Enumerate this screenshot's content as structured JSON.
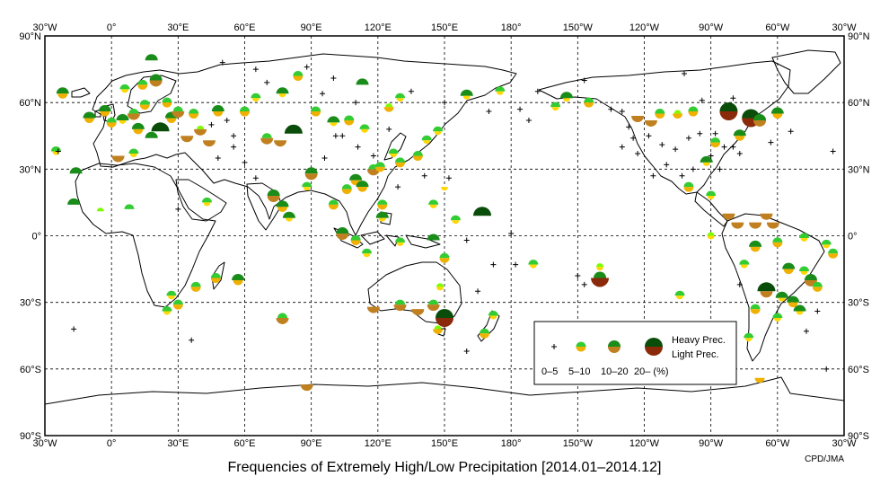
{
  "title": "Frequencies of Extremely High/Low Precipitation [2014.01–2014.12]",
  "credit": "CPD/JMA",
  "lon_labels": [
    "30°W",
    "0°",
    "30°E",
    "60°E",
    "90°E",
    "120°E",
    "150°E",
    "180°",
    "150°W",
    "120°W",
    "90°W",
    "60°W",
    "30°W"
  ],
  "lat_labels": [
    "90°N",
    "60°N",
    "30°N",
    "0°",
    "30°S",
    "60°S",
    "90°S"
  ],
  "legend": {
    "heavy_label": "Heavy Prec.",
    "light_label": "Light Prec.",
    "class_labels": [
      "0–5",
      "5–10",
      "10–20",
      "20– (%)"
    ]
  },
  "colors": {
    "heavy": [
      "#7cfc00",
      "#33cc33",
      "#1a8c1a",
      "#0a4d0a"
    ],
    "light": [
      "#ffd700",
      "#f0b000",
      "#c08020",
      "#8b2a0a"
    ]
  },
  "map_data": {
    "type": "station-symbol-map",
    "projection": "equirectangular, centered on 150°E (lon range 30°W–330°E)",
    "symbol_encoding": "upper half-disc = frequency of extremely heavy precipitation, lower half-disc = frequency of extremely light precipitation; '+' = 0–5%",
    "points": [
      {
        "lon": -10,
        "lat": 53,
        "h": 2,
        "l": 1
      },
      {
        "lon": -3,
        "lat": 56,
        "h": 2,
        "l": 1
      },
      {
        "lon": 0,
        "lat": 51,
        "h": 1,
        "l": 1
      },
      {
        "lon": 5,
        "lat": 52,
        "h": 2,
        "l": 0
      },
      {
        "lon": 10,
        "lat": 55,
        "h": 1,
        "l": 2
      },
      {
        "lon": 12,
        "lat": 48,
        "h": 2,
        "l": 1
      },
      {
        "lon": 15,
        "lat": 59,
        "h": 1,
        "l": 1
      },
      {
        "lon": 18,
        "lat": 44,
        "h": 2,
        "l": -1
      },
      {
        "lon": 22,
        "lat": 47,
        "h": 3,
        "l": -1
      },
      {
        "lon": 25,
        "lat": 60,
        "h": 1,
        "l": 1
      },
      {
        "lon": 27,
        "lat": 53,
        "h": 2,
        "l": 1
      },
      {
        "lon": 30,
        "lat": 56,
        "h": 1,
        "l": 2
      },
      {
        "lon": 34,
        "lat": 45,
        "h": -1,
        "l": 2
      },
      {
        "lon": 37,
        "lat": 55,
        "h": 1,
        "l": 1
      },
      {
        "lon": 40,
        "lat": 48,
        "h": 0,
        "l": 2
      },
      {
        "lon": 44,
        "lat": 43,
        "h": -1,
        "l": 2
      },
      {
        "lon": 48,
        "lat": 56,
        "h": 2,
        "l": 1
      },
      {
        "lon": 6,
        "lat": 66,
        "h": 1,
        "l": 0
      },
      {
        "lon": 14,
        "lat": 68,
        "h": 1,
        "l": 1
      },
      {
        "lon": 20,
        "lat": 70,
        "h": 2,
        "l": 2
      },
      {
        "lon": -22,
        "lat": 64,
        "h": 2,
        "l": 1
      },
      {
        "lon": 18,
        "lat": 79,
        "h": 2,
        "l": -1
      },
      {
        "lon": -25,
        "lat": 38,
        "h": 1,
        "l": 0
      },
      {
        "lon": -16,
        "lat": 28,
        "h": 2,
        "l": -1
      },
      {
        "lon": -17,
        "lat": 14,
        "h": 2,
        "l": -1
      },
      {
        "lon": 3,
        "lat": 36,
        "h": -1,
        "l": 2
      },
      {
        "lon": 10,
        "lat": 37,
        "h": 1,
        "l": 0
      },
      {
        "lon": 60,
        "lat": 56,
        "h": 1,
        "l": 1
      },
      {
        "lon": 65,
        "lat": 62,
        "h": 1,
        "l": 0
      },
      {
        "lon": 70,
        "lat": 44,
        "h": 1,
        "l": 2
      },
      {
        "lon": 76,
        "lat": 43,
        "h": -1,
        "l": 2
      },
      {
        "lon": 77,
        "lat": 64,
        "h": 2,
        "l": 0
      },
      {
        "lon": 82,
        "lat": 46,
        "h": 3,
        "l": -1
      },
      {
        "lon": 84,
        "lat": 72,
        "h": 1,
        "l": 1
      },
      {
        "lon": 92,
        "lat": 56,
        "h": 1,
        "l": 1
      },
      {
        "lon": 100,
        "lat": 51,
        "h": 2,
        "l": 0
      },
      {
        "lon": 107,
        "lat": 52,
        "h": 1,
        "l": 1
      },
      {
        "lon": 114,
        "lat": 48,
        "h": 1,
        "l": 0
      },
      {
        "lon": 113,
        "lat": 68,
        "h": 2,
        "l": -1
      },
      {
        "lon": 125,
        "lat": 58,
        "h": 0,
        "l": 1
      },
      {
        "lon": 130,
        "lat": 62,
        "h": 1,
        "l": 0
      },
      {
        "lon": 147,
        "lat": 47,
        "h": 1,
        "l": 0
      },
      {
        "lon": 160,
        "lat": 63,
        "h": 2,
        "l": 0
      },
      {
        "lon": 175,
        "lat": 65,
        "h": 1,
        "l": 0
      },
      {
        "lon": 90,
        "lat": 28,
        "h": 2,
        "l": 2
      },
      {
        "lon": 73,
        "lat": 18,
        "h": 2,
        "l": 2
      },
      {
        "lon": 77,
        "lat": 13,
        "h": 2,
        "l": 1
      },
      {
        "lon": 80,
        "lat": 8,
        "h": 2,
        "l": 0
      },
      {
        "lon": 88,
        "lat": 22,
        "h": 1,
        "l": 0
      },
      {
        "lon": 100,
        "lat": 14,
        "h": 1,
        "l": 1
      },
      {
        "lon": 106,
        "lat": 21,
        "h": 1,
        "l": 1
      },
      {
        "lon": 110,
        "lat": 25,
        "h": 2,
        "l": 1
      },
      {
        "lon": 113,
        "lat": 22,
        "h": 2,
        "l": 1
      },
      {
        "lon": 118,
        "lat": 30,
        "h": 1,
        "l": 2
      },
      {
        "lon": 121,
        "lat": 31,
        "h": 1,
        "l": 1
      },
      {
        "lon": 127,
        "lat": 37,
        "h": 1,
        "l": 0
      },
      {
        "lon": 130,
        "lat": 33,
        "h": 1,
        "l": 1
      },
      {
        "lon": 138,
        "lat": 36,
        "h": 1,
        "l": 1
      },
      {
        "lon": 142,
        "lat": 43,
        "h": 1,
        "l": 0
      },
      {
        "lon": 150,
        "lat": 22,
        "h": -1,
        "l": 0
      },
      {
        "lon": 145,
        "lat": 14,
        "h": 1,
        "l": 0
      },
      {
        "lon": 167,
        "lat": 9,
        "h": 3,
        "l": -1
      },
      {
        "lon": 155,
        "lat": 7,
        "h": 1,
        "l": 0
      },
      {
        "lon": 122,
        "lat": 14,
        "h": 1,
        "l": 1
      },
      {
        "lon": 122,
        "lat": 8,
        "h": 2,
        "l": 0
      },
      {
        "lon": 104,
        "lat": 1,
        "h": 2,
        "l": 2
      },
      {
        "lon": 110,
        "lat": -2,
        "h": 1,
        "l": 1
      },
      {
        "lon": 115,
        "lat": -8,
        "h": 1,
        "l": 0
      },
      {
        "lon": 130,
        "lat": -3,
        "h": 1,
        "l": 0
      },
      {
        "lon": 145,
        "lat": -2,
        "h": 2,
        "l": -1
      },
      {
        "lon": 150,
        "lat": -10,
        "h": 1,
        "l": 1
      },
      {
        "lon": 148,
        "lat": -23,
        "h": 0,
        "l": 0
      },
      {
        "lon": 130,
        "lat": -31,
        "h": 1,
        "l": 2
      },
      {
        "lon": 118,
        "lat": -32,
        "h": -1,
        "l": 2
      },
      {
        "lon": 138,
        "lat": -33,
        "h": -1,
        "l": 2
      },
      {
        "lon": 145,
        "lat": -31,
        "h": 1,
        "l": 2
      },
      {
        "lon": 150,
        "lat": -37,
        "h": 3,
        "l": 3
      },
      {
        "lon": 147,
        "lat": -42,
        "h": 0,
        "l": 1
      },
      {
        "lon": 172,
        "lat": -36,
        "h": 1,
        "l": 0
      },
      {
        "lon": 168,
        "lat": -44,
        "h": 1,
        "l": 1
      },
      {
        "lon": 77,
        "lat": -37,
        "h": 1,
        "l": 2
      },
      {
        "lon": 88,
        "lat": -67,
        "h": -1,
        "l": 2
      },
      {
        "lon": 57,
        "lat": -20,
        "h": 2,
        "l": 1
      },
      {
        "lon": 47,
        "lat": -19,
        "h": 1,
        "l": 1
      },
      {
        "lon": 38,
        "lat": -23,
        "h": 1,
        "l": 1
      },
      {
        "lon": 27,
        "lat": -27,
        "h": 1,
        "l": 0
      },
      {
        "lon": 30,
        "lat": -31,
        "h": 1,
        "l": 1
      },
      {
        "lon": 25,
        "lat": -34,
        "h": 1,
        "l": 0
      },
      {
        "lon": -5,
        "lat": 11,
        "h": 0,
        "l": -1
      },
      {
        "lon": 8,
        "lat": 12,
        "h": 1,
        "l": -1
      },
      {
        "lon": 43,
        "lat": 15,
        "h": 1,
        "l": 0
      },
      {
        "lon": -123,
        "lat": 54,
        "h": -1,
        "l": 2
      },
      {
        "lon": -117,
        "lat": 52,
        "h": -1,
        "l": 2
      },
      {
        "lon": -113,
        "lat": 55,
        "h": 1,
        "l": 1
      },
      {
        "lon": -105,
        "lat": 55,
        "h": 0,
        "l": 1
      },
      {
        "lon": -98,
        "lat": 56,
        "h": 1,
        "l": 1
      },
      {
        "lon": -82,
        "lat": 56,
        "h": 3,
        "l": 3
      },
      {
        "lon": -72,
        "lat": 53,
        "h": 3,
        "l": 3
      },
      {
        "lon": -68,
        "lat": 52,
        "h": 2,
        "l": 2
      },
      {
        "lon": -60,
        "lat": 55,
        "h": 2,
        "l": 1
      },
      {
        "lon": -77,
        "lat": 45,
        "h": 2,
        "l": 1
      },
      {
        "lon": -88,
        "lat": 42,
        "h": 1,
        "l": 1
      },
      {
        "lon": -92,
        "lat": 33,
        "h": 2,
        "l": 0
      },
      {
        "lon": -100,
        "lat": 22,
        "h": 1,
        "l": 1
      },
      {
        "lon": -90,
        "lat": 18,
        "h": 1,
        "l": 0
      },
      {
        "lon": -82,
        "lat": 10,
        "h": -1,
        "l": 2
      },
      {
        "lon": -78,
        "lat": 6,
        "h": -1,
        "l": 2
      },
      {
        "lon": -70,
        "lat": 6,
        "h": -1,
        "l": 2
      },
      {
        "lon": -65,
        "lat": 10,
        "h": -1,
        "l": 2
      },
      {
        "lon": -62,
        "lat": 6,
        "h": -1,
        "l": 2
      },
      {
        "lon": -155,
        "lat": 62,
        "h": 2,
        "l": 0
      },
      {
        "lon": -160,
        "lat": 58,
        "h": 1,
        "l": 0
      },
      {
        "lon": -145,
        "lat": 60,
        "h": 1,
        "l": 1
      },
      {
        "lon": -140,
        "lat": -14,
        "h": 0,
        "l": 0
      },
      {
        "lon": -140,
        "lat": -19,
        "h": 2,
        "l": 3
      },
      {
        "lon": -170,
        "lat": -13,
        "h": 1,
        "l": 0
      },
      {
        "lon": -104,
        "lat": -27,
        "h": 1,
        "l": 0
      },
      {
        "lon": -75,
        "lat": -13,
        "h": 1,
        "l": 0
      },
      {
        "lon": -70,
        "lat": -5,
        "h": 2,
        "l": 1
      },
      {
        "lon": -60,
        "lat": -3,
        "h": 1,
        "l": 1
      },
      {
        "lon": -48,
        "lat": -1,
        "h": 1,
        "l": 0
      },
      {
        "lon": -38,
        "lat": -4,
        "h": 1,
        "l": 0
      },
      {
        "lon": -35,
        "lat": -8,
        "h": 1,
        "l": 1
      },
      {
        "lon": -55,
        "lat": -15,
        "h": 2,
        "l": 1
      },
      {
        "lon": -48,
        "lat": -16,
        "h": 1,
        "l": 0
      },
      {
        "lon": -45,
        "lat": -20,
        "h": 2,
        "l": 2
      },
      {
        "lon": -42,
        "lat": -23,
        "h": 1,
        "l": 1
      },
      {
        "lon": -65,
        "lat": -25,
        "h": 3,
        "l": 2
      },
      {
        "lon": -58,
        "lat": -28,
        "h": 2,
        "l": 0
      },
      {
        "lon": -53,
        "lat": -30,
        "h": 2,
        "l": 1
      },
      {
        "lon": -50,
        "lat": -34,
        "h": 2,
        "l": 0
      },
      {
        "lon": -60,
        "lat": -37,
        "h": 1,
        "l": 0
      },
      {
        "lon": -70,
        "lat": -33,
        "h": 1,
        "l": 1
      },
      {
        "lon": -73,
        "lat": -46,
        "h": 1,
        "l": 0
      },
      {
        "lon": -68,
        "lat": -64,
        "h": -1,
        "l": 1
      },
      {
        "lon": -90,
        "lat": 0,
        "h": 0,
        "l": 0
      }
    ],
    "plus_points": [
      [
        -17,
        -42
      ],
      [
        -24,
        38
      ],
      [
        36,
        -47
      ],
      [
        30,
        12
      ],
      [
        48,
        35
      ],
      [
        55,
        40
      ],
      [
        60,
        33
      ],
      [
        65,
        26
      ],
      [
        96,
        35
      ],
      [
        101,
        45
      ],
      [
        104,
        45
      ],
      [
        111,
        40
      ],
      [
        125,
        48
      ],
      [
        118,
        36
      ],
      [
        129,
        22
      ],
      [
        141,
        27
      ],
      [
        152,
        26
      ],
      [
        160,
        -2
      ],
      [
        160,
        -52
      ],
      [
        165,
        -25
      ],
      [
        180,
        1
      ],
      [
        172,
        -13
      ],
      [
        -178,
        -13
      ],
      [
        -147,
        -22
      ],
      [
        -150,
        -18
      ],
      [
        -130,
        40
      ],
      [
        -125,
        44
      ],
      [
        -118,
        45
      ],
      [
        -112,
        41
      ],
      [
        -106,
        39
      ],
      [
        -100,
        44
      ],
      [
        -95,
        46
      ],
      [
        -88,
        46
      ],
      [
        -84,
        40
      ],
      [
        -80,
        40
      ],
      [
        -77,
        37
      ],
      [
        -90,
        36
      ],
      [
        -110,
        32
      ],
      [
        -98,
        30
      ],
      [
        -86,
        30
      ],
      [
        -63,
        42
      ],
      [
        -54,
        47
      ],
      [
        -35,
        38
      ],
      [
        -42,
        -34
      ],
      [
        -47,
        -43
      ],
      [
        -38,
        -60
      ],
      [
        -77,
        -22
      ],
      [
        -103,
        27
      ],
      [
        -116,
        27
      ],
      [
        -123,
        37
      ],
      [
        -127,
        49
      ],
      [
        -135,
        57
      ],
      [
        -130,
        56
      ],
      [
        -94,
        61
      ],
      [
        -80,
        62
      ],
      [
        -102,
        73
      ],
      [
        -147,
        70
      ],
      [
        -168,
        65
      ],
      [
        -172,
        52
      ],
      [
        -176,
        57
      ],
      [
        150,
        60
      ],
      [
        170,
        56
      ],
      [
        135,
        65
      ],
      [
        110,
        60
      ],
      [
        95,
        64
      ],
      [
        70,
        69
      ],
      [
        65,
        75
      ],
      [
        50,
        78
      ],
      [
        88,
        76
      ],
      [
        100,
        71
      ],
      [
        55,
        45
      ],
      [
        45,
        50
      ],
      [
        52,
        52
      ]
    ]
  }
}
